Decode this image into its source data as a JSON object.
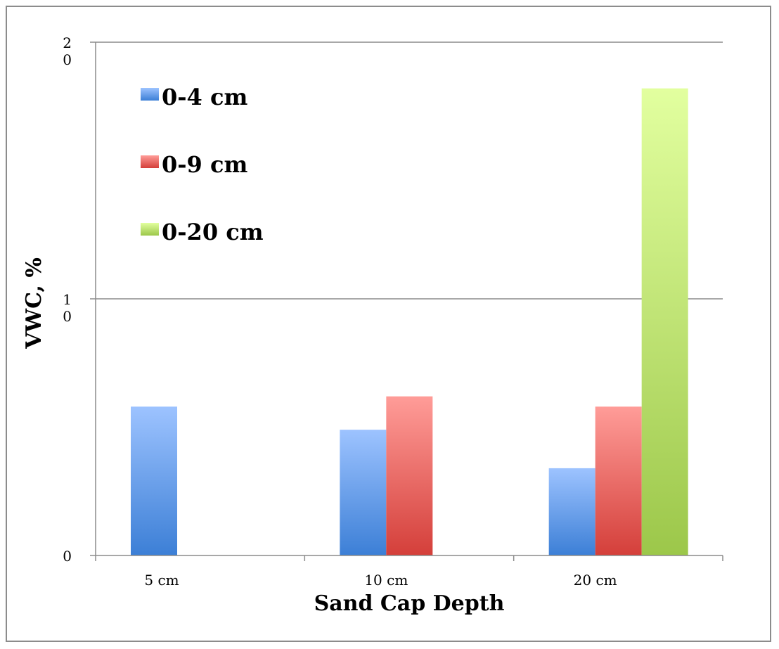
{
  "chart_data": {
    "type": "bar",
    "categories": [
      "5 cm",
      "10 cm",
      "20 cm"
    ],
    "series": [
      {
        "name": "0-4 cm",
        "values": [
          5.8,
          4.9,
          3.4
        ]
      },
      {
        "name": "0-9 cm",
        "values": [
          null,
          6.2,
          5.8
        ]
      },
      {
        "name": "0-20 cm",
        "values": [
          null,
          null,
          18.2
        ]
      }
    ],
    "colors": {
      "0-4 cm": {
        "top": "#9dc3ff",
        "bottom": "#3c7fd6"
      },
      "0-9 cm": {
        "top": "#ff9c98",
        "bottom": "#d43f3a"
      },
      "0-20 cm": {
        "top": "#e2ff9f",
        "bottom": "#9cc74a"
      }
    },
    "xlabel": "Sand Cap Depth",
    "ylabel": "VWC, %",
    "ylim": [
      0,
      20
    ],
    "y_ticks": [
      {
        "value": 0,
        "lines": [
          "0"
        ]
      },
      {
        "value": 10,
        "lines": [
          "1",
          "0"
        ]
      },
      {
        "value": 20,
        "lines": [
          "2",
          "0"
        ]
      }
    ],
    "grid": true,
    "legend_position": "top-left"
  }
}
